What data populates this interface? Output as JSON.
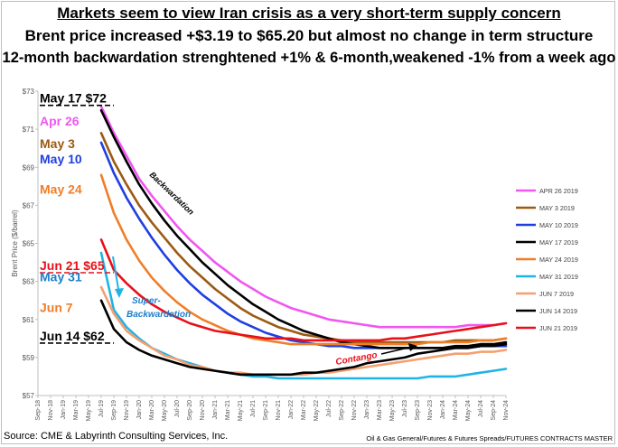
{
  "titles": {
    "line1": "Markets seem to view Iran crisis as a very short-term supply concern",
    "line2": "Brent price increased +$3.19 to $65.20 but almost no change in term structure",
    "line3": "12-month backwardation strenghtened +1% & 6-month,weakened -1% from a week ago"
  },
  "footer": {
    "source": "Source: CME & Labyrinth Consulting Services, Inc.",
    "credit": "Oil & Gas General/Futures & Futures Spreads/FUTURES CONTRACTS MASTER"
  },
  "chart_data": {
    "type": "line",
    "ylabel": "Brent Price ($/barrel)",
    "ylim": [
      57,
      73
    ],
    "yticks": [
      "$57",
      "$59",
      "$61",
      "$63",
      "$65",
      "$67",
      "$69",
      "$71",
      "$73"
    ],
    "x_labels": [
      "Sep-18",
      "Nov-18",
      "Jan-19",
      "Mar-19",
      "May-19",
      "Jul-19",
      "Sep-19",
      "Nov-19",
      "Jan-20",
      "Mar-20",
      "May-20",
      "Jul-20",
      "Sep-20",
      "Nov-20",
      "Jan-21",
      "Mar-21",
      "May-21",
      "Jul-21",
      "Sep-21",
      "Nov-21",
      "Jan-22",
      "Mar-22",
      "May-22",
      "Jul-22",
      "Sep-22",
      "Nov-22",
      "Jan-23",
      "Mar-23",
      "May-23",
      "Jul-23",
      "Sep-23",
      "Nov-23",
      "Jan-24",
      "Mar-24",
      "May-24",
      "Jul-24",
      "Sep-24",
      "Nov-24"
    ],
    "series": [
      {
        "name": "APR 26 2019",
        "color": "#f056f0",
        "x": [
          "Jul-19",
          "Sep-19",
          "Nov-19",
          "Jan-20",
          "Mar-20",
          "May-20",
          "Jul-20",
          "Sep-20",
          "Nov-20",
          "Jan-21",
          "Mar-21",
          "May-21",
          "Jul-21",
          "Sep-21",
          "Nov-21",
          "Jan-22",
          "Mar-22",
          "May-22",
          "Jul-22",
          "Sep-22",
          "Nov-22",
          "Jan-23",
          "Mar-23",
          "May-23",
          "Jul-23",
          "Sep-23",
          "Nov-23",
          "Jan-24",
          "Mar-24",
          "May-24",
          "Jul-24",
          "Sep-24",
          "Nov-24"
        ],
        "values": [
          72.2,
          70.8,
          69.6,
          68.4,
          67.5,
          66.7,
          65.9,
          65.2,
          64.6,
          64.0,
          63.5,
          63.0,
          62.6,
          62.2,
          61.9,
          61.6,
          61.4,
          61.2,
          61.0,
          60.9,
          60.8,
          60.7,
          60.6,
          60.6,
          60.6,
          60.6,
          60.6,
          60.6,
          60.6,
          60.7,
          60.7,
          60.7,
          60.8
        ]
      },
      {
        "name": "MAY 3 2019",
        "color": "#9c5a12",
        "x": [
          "Jul-19",
          "Sep-19",
          "Nov-19",
          "Jan-20",
          "Mar-20",
          "May-20",
          "Jul-20",
          "Sep-20",
          "Nov-20",
          "Jan-21",
          "Mar-21",
          "May-21",
          "Jul-21",
          "Sep-21",
          "Nov-21",
          "Jan-22",
          "Mar-22",
          "May-22",
          "Jul-22",
          "Sep-22",
          "Nov-22",
          "Jan-23",
          "Mar-23",
          "May-23",
          "Jul-23",
          "Sep-23",
          "Nov-23",
          "Jan-24",
          "Mar-24",
          "May-24",
          "Jul-24",
          "Sep-24",
          "Nov-24"
        ],
        "values": [
          70.8,
          69.3,
          68.1,
          67.0,
          66.1,
          65.3,
          64.5,
          63.8,
          63.2,
          62.6,
          62.1,
          61.6,
          61.2,
          60.9,
          60.6,
          60.4,
          60.2,
          60.1,
          60.0,
          59.9,
          59.8,
          59.8,
          59.8,
          59.8,
          59.8,
          59.8,
          59.8,
          59.8,
          59.9,
          59.9,
          59.9,
          59.9,
          60.0
        ]
      },
      {
        "name": "MAY 10 2019",
        "color": "#1f3fe0",
        "x": [
          "Jul-19",
          "Sep-19",
          "Nov-19",
          "Jan-20",
          "Mar-20",
          "May-20",
          "Jul-20",
          "Sep-20",
          "Nov-20",
          "Jan-21",
          "Mar-21",
          "May-21",
          "Jul-21",
          "Sep-21",
          "Nov-21",
          "Jan-22",
          "Mar-22",
          "May-22",
          "Jul-22",
          "Sep-22",
          "Nov-22",
          "Jan-23",
          "Mar-23",
          "May-23",
          "Jul-23",
          "Sep-23",
          "Nov-23",
          "Jan-24",
          "Mar-24",
          "May-24",
          "Jul-24",
          "Sep-24",
          "Nov-24"
        ],
        "values": [
          70.3,
          68.7,
          67.4,
          66.3,
          65.3,
          64.4,
          63.6,
          62.9,
          62.3,
          61.8,
          61.3,
          60.9,
          60.6,
          60.3,
          60.1,
          59.9,
          59.8,
          59.7,
          59.6,
          59.6,
          59.5,
          59.5,
          59.5,
          59.5,
          59.5,
          59.5,
          59.5,
          59.5,
          59.5,
          59.5,
          59.6,
          59.6,
          59.6
        ]
      },
      {
        "name": "MAY 17 2019",
        "color": "#000000",
        "x": [
          "Jul-19",
          "Sep-19",
          "Nov-19",
          "Jan-20",
          "Mar-20",
          "May-20",
          "Jul-20",
          "Sep-20",
          "Nov-20",
          "Jan-21",
          "Mar-21",
          "May-21",
          "Jul-21",
          "Sep-21",
          "Nov-21",
          "Jan-22",
          "Mar-22",
          "May-22",
          "Jul-22",
          "Sep-22",
          "Nov-22",
          "Jan-23",
          "Mar-23",
          "May-23",
          "Jul-23",
          "Sep-23",
          "Nov-23",
          "Jan-24",
          "Mar-24",
          "May-24",
          "Jul-24",
          "Sep-24",
          "Nov-24"
        ],
        "values": [
          72.0,
          70.6,
          69.3,
          68.1,
          67.1,
          66.2,
          65.4,
          64.7,
          64.0,
          63.4,
          62.8,
          62.3,
          61.8,
          61.4,
          61.0,
          60.7,
          60.4,
          60.2,
          60.0,
          59.8,
          59.7,
          59.6,
          59.5,
          59.5,
          59.5,
          59.5,
          59.5,
          59.5,
          59.6,
          59.6,
          59.7,
          59.7,
          59.8
        ]
      },
      {
        "name": "MAY 24 2019",
        "color": "#f07e28",
        "x": [
          "Jul-19",
          "Sep-19",
          "Nov-19",
          "Jan-20",
          "Mar-20",
          "May-20",
          "Jul-20",
          "Sep-20",
          "Nov-20",
          "Jan-21",
          "Mar-21",
          "May-21",
          "Jul-21",
          "Sep-21",
          "Nov-21",
          "Jan-22",
          "Mar-22",
          "May-22",
          "Jul-22",
          "Sep-22",
          "Nov-22",
          "Jan-23",
          "Mar-23",
          "May-23",
          "Jul-23",
          "Sep-23",
          "Nov-23",
          "Jan-24",
          "Mar-24",
          "May-24",
          "Jul-24",
          "Sep-24",
          "Nov-24"
        ],
        "values": [
          68.6,
          66.6,
          65.2,
          64.1,
          63.2,
          62.5,
          61.9,
          61.4,
          61.0,
          60.7,
          60.4,
          60.2,
          60.0,
          59.9,
          59.8,
          59.7,
          59.7,
          59.7,
          59.7,
          59.7,
          59.7,
          59.7,
          59.7,
          59.7,
          59.7,
          59.7,
          59.8,
          59.8,
          59.8,
          59.8,
          59.9,
          59.9,
          60.0
        ]
      },
      {
        "name": "MAY 31 2019",
        "color": "#20b4e6",
        "x": [
          "Jul-19",
          "Sep-19",
          "Nov-19",
          "Jan-20",
          "Mar-20",
          "May-20",
          "Jul-20",
          "Sep-20",
          "Nov-20",
          "Jan-21",
          "Mar-21",
          "May-21",
          "Jul-21",
          "Sep-21",
          "Nov-21",
          "Jan-22",
          "Mar-22",
          "May-22",
          "Jul-22",
          "Sep-22",
          "Nov-22",
          "Jan-23",
          "Mar-23",
          "May-23",
          "Jul-23",
          "Sep-23",
          "Nov-23",
          "Jan-24",
          "Mar-24",
          "May-24",
          "Jul-24",
          "Sep-24",
          "Nov-24"
        ],
        "values": [
          64.5,
          61.5,
          60.6,
          60.0,
          59.5,
          59.2,
          58.9,
          58.7,
          58.5,
          58.3,
          58.2,
          58.1,
          58.0,
          58.0,
          57.9,
          57.9,
          57.9,
          57.9,
          57.9,
          57.9,
          57.9,
          57.9,
          57.9,
          57.9,
          57.9,
          57.9,
          58.0,
          58.0,
          58.0,
          58.1,
          58.2,
          58.3,
          58.4
        ]
      },
      {
        "name": "JUN 7 2019",
        "color": "#f4a070",
        "x": [
          "Jul-19",
          "Sep-19",
          "Nov-19",
          "Jan-20",
          "Mar-20",
          "May-20",
          "Jul-20",
          "Sep-20",
          "Nov-20",
          "Jan-21",
          "Mar-21",
          "May-21",
          "Jul-21",
          "Sep-21",
          "Nov-21",
          "Jan-22",
          "Mar-22",
          "May-22",
          "Jul-22",
          "Sep-22",
          "Nov-22",
          "Jan-23",
          "Mar-23",
          "May-23",
          "Jul-23",
          "Sep-23",
          "Nov-23",
          "Jan-24",
          "Mar-24",
          "May-24",
          "Jul-24",
          "Sep-24",
          "Nov-24"
        ],
        "values": [
          62.7,
          61.3,
          60.4,
          59.9,
          59.5,
          59.1,
          58.9,
          58.6,
          58.5,
          58.3,
          58.2,
          58.2,
          58.1,
          58.1,
          58.1,
          58.1,
          58.1,
          58.2,
          58.2,
          58.3,
          58.4,
          58.5,
          58.6,
          58.7,
          58.8,
          58.9,
          59.0,
          59.1,
          59.2,
          59.2,
          59.3,
          59.3,
          59.4
        ]
      },
      {
        "name": "JUN 14 2019",
        "color": "#000000",
        "x": [
          "Jul-19",
          "Sep-19",
          "Nov-19",
          "Jan-20",
          "Mar-20",
          "May-20",
          "Jul-20",
          "Sep-20",
          "Nov-20",
          "Jan-21",
          "Mar-21",
          "May-21",
          "Jul-21",
          "Sep-21",
          "Nov-21",
          "Jan-22",
          "Mar-22",
          "May-22",
          "Jul-22",
          "Sep-22",
          "Nov-22",
          "Jan-23",
          "Mar-23",
          "May-23",
          "Jul-23",
          "Sep-23",
          "Nov-23",
          "Jan-24",
          "Mar-24",
          "May-24",
          "Jul-24",
          "Sep-24",
          "Nov-24"
        ],
        "values": [
          62.0,
          60.5,
          59.8,
          59.4,
          59.1,
          58.9,
          58.7,
          58.5,
          58.4,
          58.3,
          58.2,
          58.1,
          58.1,
          58.1,
          58.1,
          58.1,
          58.2,
          58.2,
          58.3,
          58.4,
          58.5,
          58.7,
          58.8,
          58.9,
          59.0,
          59.2,
          59.3,
          59.4,
          59.5,
          59.5,
          59.6,
          59.6,
          59.7
        ]
      },
      {
        "name": "JUN 21 2019",
        "color": "#e8101a",
        "x": [
          "Jul-19",
          "Sep-19",
          "Nov-19",
          "Jan-20",
          "Mar-20",
          "May-20",
          "Jul-20",
          "Sep-20",
          "Nov-20",
          "Jan-21",
          "Mar-21",
          "May-21",
          "Jul-21",
          "Sep-21",
          "Nov-21",
          "Jan-22",
          "Mar-22",
          "May-22",
          "Jul-22",
          "Sep-22",
          "Nov-22",
          "Jan-23",
          "Mar-23",
          "May-23",
          "Jul-23",
          "Sep-23",
          "Nov-23",
          "Jan-24",
          "Mar-24",
          "May-24",
          "Jul-24",
          "Sep-24",
          "Nov-24"
        ],
        "values": [
          65.2,
          63.6,
          62.9,
          62.3,
          61.8,
          61.4,
          61.1,
          60.8,
          60.6,
          60.4,
          60.3,
          60.2,
          60.1,
          60.0,
          60.0,
          60.0,
          59.9,
          59.9,
          59.9,
          59.9,
          59.9,
          59.9,
          59.9,
          60.0,
          60.0,
          60.1,
          60.2,
          60.3,
          60.4,
          60.5,
          60.6,
          60.7,
          60.8
        ]
      }
    ],
    "left_labels": [
      {
        "text": "May 17 $72",
        "color": "#000000",
        "y": 72.4,
        "underline": true
      },
      {
        "text": "Apr 26",
        "color": "#f056f0",
        "y": 71.2
      },
      {
        "text": "May 3",
        "color": "#9c5a12",
        "y": 70.0
      },
      {
        "text": "May 10",
        "color": "#1f3fe0",
        "y": 69.2
      },
      {
        "text": "May 24",
        "color": "#f07e28",
        "y": 67.6
      },
      {
        "text": "Jun 21 $65",
        "color": "#e8101a",
        "y": 63.6,
        "underline": true
      },
      {
        "text": "May 31",
        "color": "#1e7fcb",
        "y": 63.0
      },
      {
        "text": "Jun 7",
        "color": "#f07e28",
        "y": 61.4
      },
      {
        "text": "Jun 14   $62",
        "color": "#000000",
        "y": 59.9,
        "underline": true
      }
    ],
    "annotations": {
      "backwardation": "Backwardation",
      "super_backwardation": "Super-\nBackwardation",
      "contango": "Contango"
    },
    "legend_position": "right"
  }
}
